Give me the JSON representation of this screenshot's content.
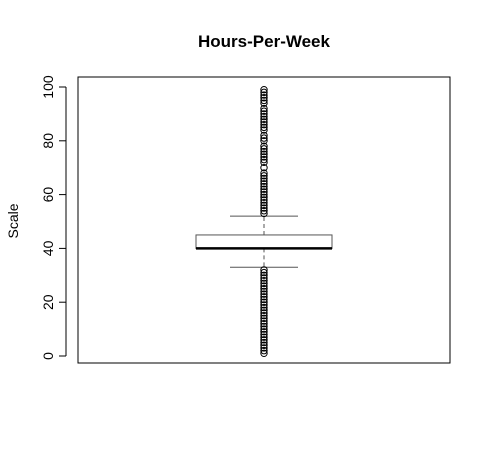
{
  "chart_data": {
    "type": "boxplot",
    "title": "Hours-Per-Week",
    "xlabel": "",
    "ylabel": "Scale",
    "ylim": [
      -2,
      102
    ],
    "yticks": [
      0,
      20,
      40,
      60,
      80,
      100
    ],
    "ytick_labels": [
      "0",
      "20",
      "40",
      "60",
      "80",
      "100"
    ],
    "grid": false,
    "legend": "none",
    "box": {
      "whisker_low": 33,
      "q1": 40,
      "median": 40,
      "q3": 45,
      "whisker_high": 52
    },
    "outliers_low": [
      1,
      2,
      3,
      4,
      5,
      6,
      7,
      8,
      9,
      10,
      11,
      12,
      13,
      14,
      15,
      16,
      17,
      18,
      19,
      20,
      21,
      22,
      23,
      24,
      25,
      26,
      27,
      28,
      29,
      30,
      31,
      32
    ],
    "outliers_high": [
      53,
      54,
      55,
      56,
      57,
      58,
      59,
      60,
      61,
      62,
      63,
      64,
      65,
      66,
      67,
      68,
      70,
      72,
      73,
      74,
      75,
      76,
      77,
      78,
      80,
      81,
      82,
      84,
      85,
      86,
      87,
      88,
      89,
      90,
      91,
      92,
      94,
      95,
      96,
      97,
      98,
      99
    ],
    "colors": {
      "stroke": "#000000",
      "box_fill": "#ffffff",
      "box_edge": "#555555",
      "whisker": "#555555"
    }
  }
}
